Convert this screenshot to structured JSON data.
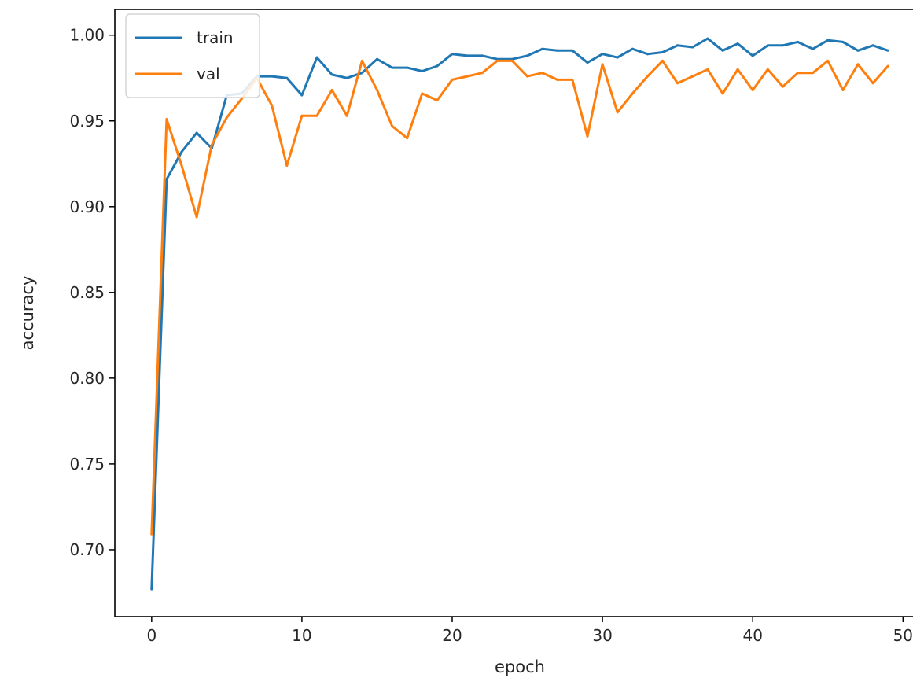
{
  "chart_data": {
    "type": "line",
    "xlabel": "epoch",
    "ylabel": "accuracy",
    "xlim": [
      -2.45,
      51.45
    ],
    "ylim": [
      0.661,
      1.015
    ],
    "xticks": [
      0,
      10,
      20,
      30,
      40,
      50
    ],
    "xtick_labels": [
      "0",
      "10",
      "20",
      "30",
      "40",
      "50"
    ],
    "yticks": [
      0.7,
      0.75,
      0.8,
      0.85,
      0.9,
      0.95,
      1.0
    ],
    "ytick_labels": [
      "0.70",
      "0.75",
      "0.80",
      "0.85",
      "0.90",
      "0.95",
      "1.00"
    ],
    "grid": false,
    "legend_position": "top-left",
    "colors": {
      "train": "#1f77b4",
      "val": "#ff7f0e"
    },
    "x": [
      0,
      1,
      2,
      3,
      4,
      5,
      6,
      7,
      8,
      9,
      10,
      11,
      12,
      13,
      14,
      15,
      16,
      17,
      18,
      19,
      20,
      21,
      22,
      23,
      24,
      25,
      26,
      27,
      28,
      29,
      30,
      31,
      32,
      33,
      34,
      35,
      36,
      37,
      38,
      39,
      40,
      41,
      42,
      43,
      44,
      45,
      46,
      47,
      48,
      49
    ],
    "series": [
      {
        "name": "train",
        "values": [
          0.677,
          0.916,
          0.932,
          0.943,
          0.934,
          0.965,
          0.966,
          0.976,
          0.976,
          0.975,
          0.965,
          0.987,
          0.977,
          0.975,
          0.978,
          0.986,
          0.981,
          0.981,
          0.979,
          0.982,
          0.989,
          0.988,
          0.988,
          0.986,
          0.986,
          0.988,
          0.992,
          0.991,
          0.991,
          0.984,
          0.989,
          0.987,
          0.992,
          0.989,
          0.99,
          0.994,
          0.993,
          0.998,
          0.991,
          0.995,
          0.988,
          0.994,
          0.994,
          0.996,
          0.992,
          0.997,
          0.996,
          0.991,
          0.994,
          0.991
        ]
      },
      {
        "name": "val",
        "values": [
          0.709,
          0.951,
          0.924,
          0.894,
          0.936,
          0.952,
          0.963,
          0.975,
          0.959,
          0.924,
          0.953,
          0.953,
          0.968,
          0.953,
          0.985,
          0.968,
          0.947,
          0.94,
          0.966,
          0.962,
          0.974,
          0.976,
          0.978,
          0.985,
          0.985,
          0.976,
          0.978,
          0.974,
          0.974,
          0.941,
          0.983,
          0.955,
          0.966,
          0.976,
          0.985,
          0.972,
          0.976,
          0.98,
          0.966,
          0.98,
          0.968,
          0.98,
          0.97,
          0.978,
          0.978,
          0.985,
          0.968,
          0.983,
          0.972,
          0.982
        ]
      }
    ]
  }
}
